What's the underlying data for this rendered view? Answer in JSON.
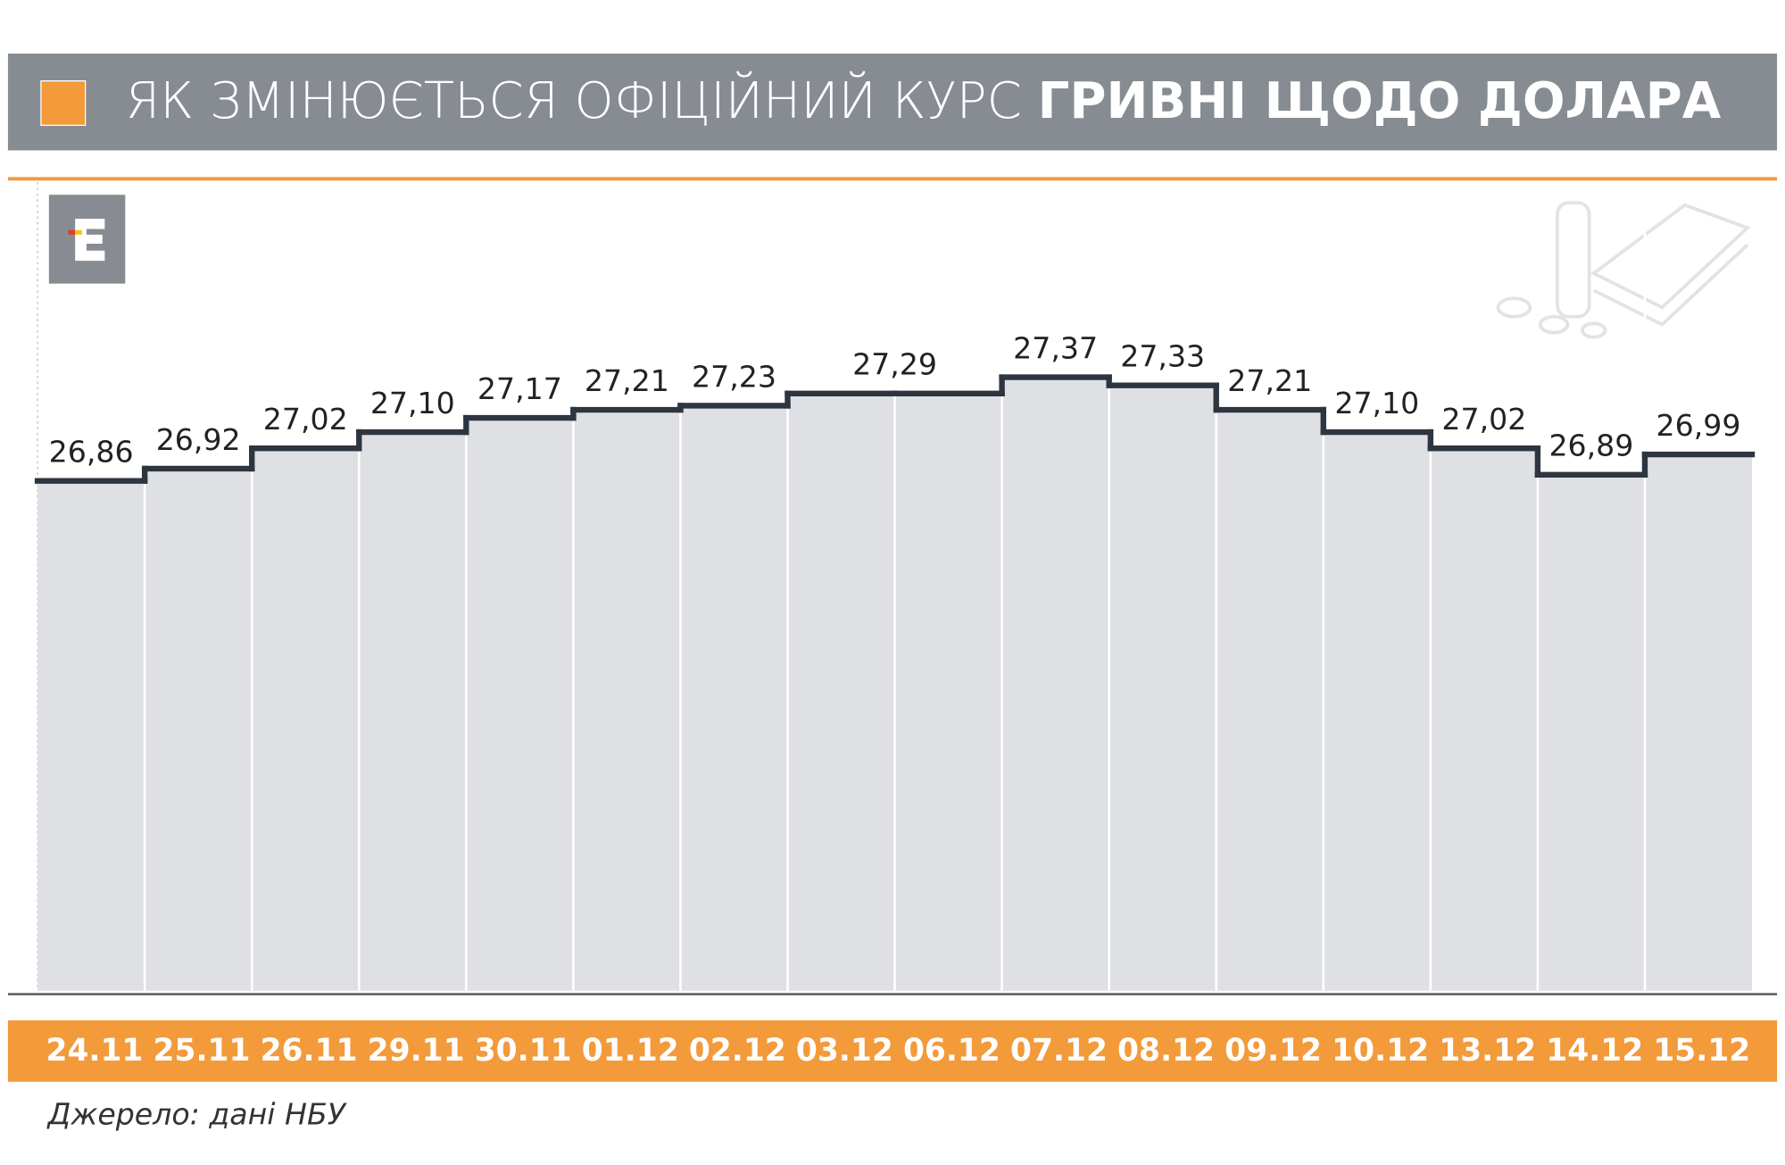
{
  "chart_data": {
    "type": "step",
    "title": [
      "ЯК ЗМІНЮЄТЬСЯ ОФІЦІЙНИЙ КУРС",
      "ГРИВНІ ЩОДО ДОЛАРА"
    ],
    "categories": [
      "24.11",
      "25.11",
      "26.11",
      "29.11",
      "30.11",
      "01.12",
      "02.12",
      "03.12",
      "06.12",
      "07.12",
      "08.12",
      "09.12",
      "10.12",
      "13.12",
      "14.12",
      "15.12"
    ],
    "values": [
      26.86,
      26.92,
      27.02,
      27.1,
      27.17,
      27.21,
      27.23,
      27.29,
      27.29,
      27.37,
      27.33,
      27.21,
      27.1,
      27.02,
      26.89,
      26.99
    ],
    "value_labels": [
      "26,86",
      "26,92",
      "27,02",
      "27,10",
      "27,17",
      "27,21",
      "27,23",
      "27,29",
      null,
      "27,37",
      "27,33",
      "27,21",
      "27,10",
      "27,02",
      "26,89",
      "26,99"
    ],
    "ylim": [
      24.35,
      28.33
    ],
    "color": "#2d3640",
    "fill": "#dfe0e3",
    "source": "Джерело: дані НБУ"
  }
}
